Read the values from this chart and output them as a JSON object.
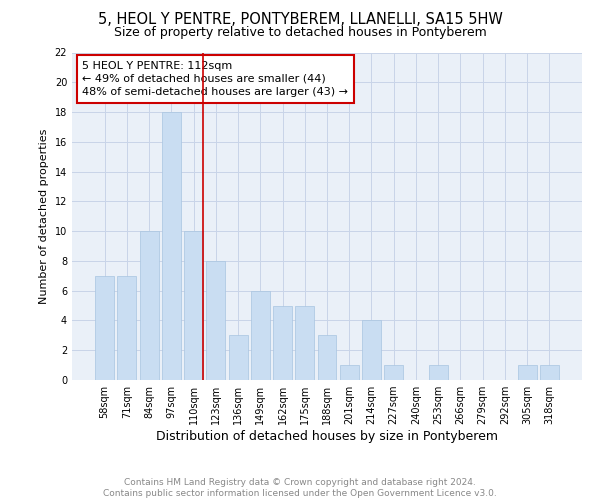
{
  "title": "5, HEOL Y PENTRE, PONTYBEREM, LLANELLI, SA15 5HW",
  "subtitle": "Size of property relative to detached houses in Pontyberem",
  "xlabel": "Distribution of detached houses by size in Pontyberem",
  "ylabel": "Number of detached properties",
  "categories": [
    "58sqm",
    "71sqm",
    "84sqm",
    "97sqm",
    "110sqm",
    "123sqm",
    "136sqm",
    "149sqm",
    "162sqm",
    "175sqm",
    "188sqm",
    "201sqm",
    "214sqm",
    "227sqm",
    "240sqm",
    "253sqm",
    "266sqm",
    "279sqm",
    "292sqm",
    "305sqm",
    "318sqm"
  ],
  "values": [
    7,
    7,
    10,
    18,
    10,
    8,
    3,
    6,
    5,
    5,
    3,
    1,
    4,
    1,
    0,
    1,
    0,
    0,
    0,
    1,
    1
  ],
  "bar_color": "#c9ddf2",
  "bar_edge_color": "#a8c4e0",
  "marker_line_index": 4,
  "marker_line_color": "#cc0000",
  "annotation_box_color": "#cc0000",
  "annotation_text": "5 HEOL Y PENTRE: 112sqm\n← 49% of detached houses are smaller (44)\n48% of semi-detached houses are larger (43) →",
  "ylim": [
    0,
    22
  ],
  "yticks": [
    0,
    2,
    4,
    6,
    8,
    10,
    12,
    14,
    16,
    18,
    20,
    22
  ],
  "grid_color": "#c8d4e8",
  "background_color": "#eaf0f8",
  "footer_text": "Contains HM Land Registry data © Crown copyright and database right 2024.\nContains public sector information licensed under the Open Government Licence v3.0.",
  "title_fontsize": 10.5,
  "subtitle_fontsize": 9,
  "xlabel_fontsize": 9,
  "ylabel_fontsize": 8,
  "tick_fontsize": 7,
  "annotation_fontsize": 8,
  "footer_fontsize": 6.5
}
